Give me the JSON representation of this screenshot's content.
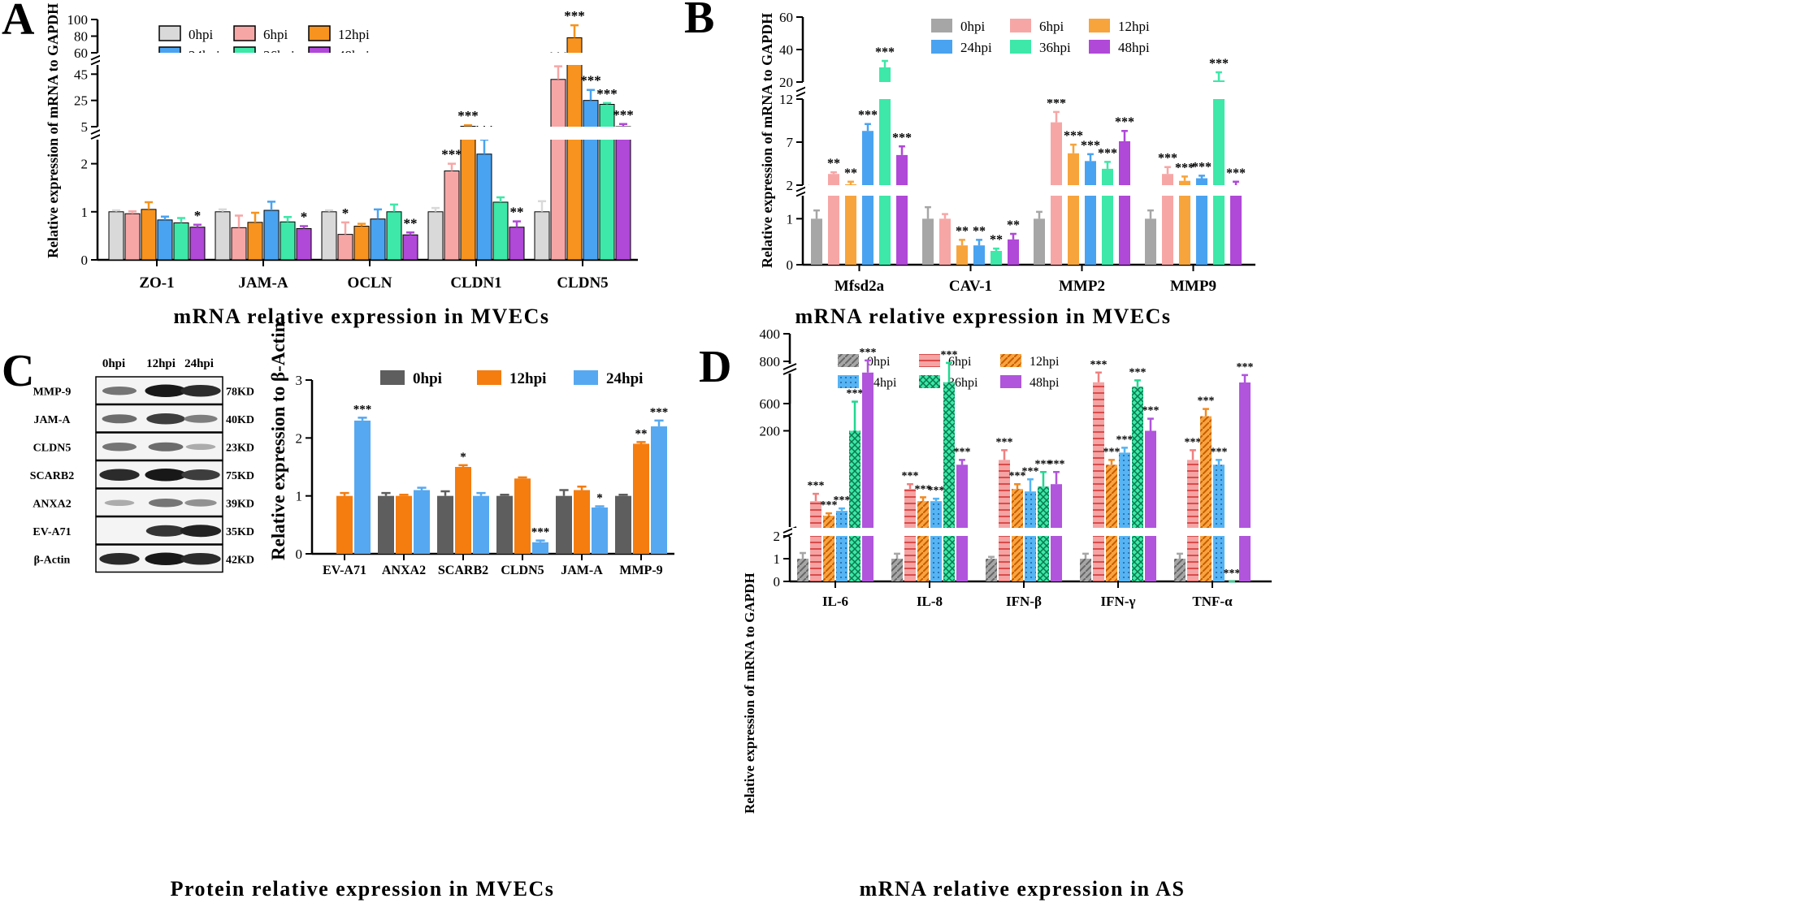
{
  "colors": {
    "h0": "#d9d9d9",
    "h6": "#f7a6a6",
    "h12": "#f7931e",
    "h24": "#4aa3f0",
    "h36": "#3de8a8",
    "h48": "#b048d8",
    "c_gray": "#a6a6a6",
    "c_pink": "#f7a6a6",
    "c_orange": "#f7a43c",
    "c_blue": "#4aa3f0",
    "c_green": "#3de8a8",
    "c_purple": "#b048d8",
    "d_gray": "#a6a6a6",
    "d_pink": "#f08080",
    "d_orange": "#f08a22",
    "d_blue": "#56b4f4",
    "d_green": "#20d890",
    "d_purple": "#b055dc",
    "wb_gray": "#5e5e5e",
    "wb_orange": "#f57c0f",
    "wb_blue": "#56a8f0"
  },
  "chart_data": [
    {
      "panel": "A",
      "type": "bar",
      "ylabel": "Relative expression of mRNA to GAPDH",
      "xtitle": "mRNA relative expression in MVECs",
      "categories": [
        "ZO-1",
        "JAM-A",
        "OCLN",
        "CLDN1",
        "CLDN5"
      ],
      "legend": [
        "0hpi",
        "6hpi",
        "12hpi",
        "24hpi",
        "36hpi",
        "48hpi"
      ],
      "yticks": [
        "0",
        "1",
        "2",
        "5",
        "25",
        "45",
        "60",
        "80",
        "100"
      ],
      "series": [
        {
          "name": "0hpi",
          "values": [
            1.0,
            1.0,
            1.0,
            1.0,
            1.0
          ],
          "err": [
            0.03,
            0.05,
            0.03,
            0.08,
            0.22
          ]
        },
        {
          "name": "6hpi",
          "values": [
            0.96,
            0.67,
            0.53,
            1.85,
            41
          ],
          "err": [
            0.05,
            0.25,
            0.25,
            0.15,
            10
          ]
        },
        {
          "name": "12hpi",
          "values": [
            1.05,
            0.78,
            0.7,
            5.3,
            78
          ],
          "err": [
            0.15,
            0.2,
            0.05,
            0.8,
            15
          ]
        },
        {
          "name": "24hpi",
          "values": [
            0.83,
            1.03,
            0.85,
            2.2,
            25
          ],
          "err": [
            0.07,
            0.18,
            0.2,
            0.3,
            8
          ]
        },
        {
          "name": "36hpi",
          "values": [
            0.77,
            0.79,
            1.0,
            1.2,
            22
          ],
          "err": [
            0.1,
            0.1,
            0.15,
            0.1,
            1
          ]
        },
        {
          "name": "48hpi",
          "values": [
            0.68,
            0.65,
            0.52,
            0.68,
            5.0
          ],
          "err": [
            0.05,
            0.05,
            0.05,
            0.12,
            2
          ]
        }
      ],
      "sig": [
        [
          "",
          "",
          "",
          "",
          ""
        ],
        [
          "",
          "",
          "*",
          "***",
          "***"
        ],
        [
          "",
          "",
          "",
          "***",
          "***"
        ],
        [
          "",
          "",
          "",
          "***",
          "***"
        ],
        [
          "",
          "",
          "",
          "",
          "***"
        ],
        [
          "*",
          "*",
          "**",
          "**",
          "***"
        ]
      ]
    },
    {
      "panel": "B",
      "type": "bar",
      "ylabel": "Relative expression of mRNA to GAPDH",
      "xtitle": "mRNA relative expression in MVECs",
      "categories": [
        "Mfsd2a",
        "CAV-1",
        "MMP2",
        "MMP9"
      ],
      "legend": [
        "0hpi",
        "6hpi",
        "12hpi",
        "24hpi",
        "36hpi",
        "48hpi"
      ],
      "yticks": [
        "0",
        "1",
        "2",
        "7",
        "12",
        "20",
        "40",
        "60"
      ],
      "series": [
        {
          "name": "0hpi",
          "values": [
            1.0,
            1.0,
            1.0,
            1.0
          ],
          "err": [
            0.18,
            0.25,
            0.15,
            0.18
          ]
        },
        {
          "name": "6hpi",
          "values": [
            3.3,
            1.0,
            9.3,
            3.3
          ],
          "err": [
            0.2,
            0.1,
            1.2,
            0.8
          ]
        },
        {
          "name": "12hpi",
          "values": [
            2.1,
            0.42,
            5.7,
            2.5
          ],
          "err": [
            0.3,
            0.12,
            1.0,
            0.5
          ]
        },
        {
          "name": "24hpi",
          "values": [
            8.3,
            0.42,
            4.8,
            2.8
          ],
          "err": [
            0.8,
            0.12,
            0.8,
            0.3
          ]
        },
        {
          "name": "36hpi",
          "values": [
            29,
            0.3,
            3.9,
            21
          ],
          "err": [
            4,
            0.05,
            0.8,
            5
          ]
        },
        {
          "name": "48hpi",
          "values": [
            5.5,
            0.55,
            7.1,
            2.0
          ],
          "err": [
            1.0,
            0.12,
            1.2,
            0.4
          ]
        }
      ],
      "sig": [
        [
          "",
          "",
          "",
          ""
        ],
        [
          "**",
          "",
          "***",
          "***"
        ],
        [
          "**",
          "**",
          "***",
          "***"
        ],
        [
          "***",
          "**",
          "***",
          "***"
        ],
        [
          "***",
          "**",
          "***",
          "***"
        ],
        [
          "***",
          "**",
          "***",
          "***"
        ]
      ]
    },
    {
      "panel": "C",
      "type": "bar",
      "ylabel": "Relative expression to β-Actin",
      "xtitle": "Protein relative expression in MVECs",
      "categories": [
        "EV-A71",
        "ANXA2",
        "SCARB2",
        "CLDN5",
        "JAM-A",
        "MMP-9"
      ],
      "legend": [
        "0hpi",
        "12hpi",
        "24hpi"
      ],
      "yticks": [
        "0",
        "1",
        "2",
        "3"
      ],
      "ylim": [
        0,
        3
      ],
      "series": [
        {
          "name": "0hpi",
          "values": [
            0,
            1.0,
            1.0,
            1.0,
            1.0,
            1.0
          ],
          "err": [
            0,
            0.05,
            0.08,
            0.02,
            0.1,
            0.02
          ]
        },
        {
          "name": "12hpi",
          "values": [
            1.0,
            1.0,
            1.5,
            1.3,
            1.1,
            1.9
          ],
          "err": [
            0.05,
            0.02,
            0.03,
            0.02,
            0.06,
            0.03
          ]
        },
        {
          "name": "24hpi",
          "values": [
            2.3,
            1.1,
            1.0,
            0.2,
            0.8,
            2.2
          ],
          "err": [
            0.05,
            0.04,
            0.05,
            0.03,
            0.02,
            0.1
          ]
        }
      ],
      "sig": [
        [
          "",
          "",
          "",
          "",
          "",
          ""
        ],
        [
          "",
          "",
          "*",
          "",
          "",
          "**"
        ],
        [
          "***",
          "",
          "",
          "***",
          "*",
          "***"
        ]
      ]
    },
    {
      "panel": "D",
      "type": "bar",
      "ylabel": "Relative expression of mRNA to GAPDH",
      "xtitle": "mRNA relative expression in AS",
      "categories": [
        "IL-6",
        "IL-8",
        "IFN-β",
        "IFN-γ",
        "TNF-α"
      ],
      "legend": [
        "0hpi",
        "6hpi",
        "12hpi",
        "24hpi",
        "36hpi",
        "48hpi"
      ],
      "yticks": [
        "0",
        "1",
        "2",
        "200",
        "400",
        "600",
        "800"
      ],
      "series": [
        {
          "name": "0hpi",
          "values": [
            1.0,
            1.0,
            1.0,
            1.0,
            1.0
          ],
          "err": [
            0.25,
            0.22,
            0.08,
            0.22,
            0.22
          ]
        },
        {
          "name": "6hpi",
          "values": [
            55,
            80,
            140,
            300,
            140
          ],
          "err": [
            15,
            10,
            20,
            20,
            20
          ]
        },
        {
          "name": "12hpi",
          "values": [
            25,
            55,
            80,
            130,
            230
          ],
          "err": [
            5,
            8,
            10,
            10,
            15
          ]
        },
        {
          "name": "24hpi",
          "values": [
            35,
            55,
            75,
            155,
            130
          ],
          "err": [
            5,
            5,
            25,
            10,
            10
          ]
        },
        {
          "name": "36hpi",
          "values": [
            200,
            300,
            85,
            680,
            410
          ],
          "err": [
            60,
            40,
            30,
            30,
            40
          ]
        },
        {
          "name": "48hpi",
          "values": [
            320,
            130,
            90,
            200,
            700
          ],
          "err": [
            25,
            10,
            25,
            25,
            35
          ]
        }
      ],
      "sig": [
        [
          "",
          "",
          "",
          "",
          ""
        ],
        [
          "***",
          "***",
          "***",
          "***",
          "***"
        ],
        [
          "***",
          "***",
          "***",
          "***",
          "***"
        ],
        [
          "***",
          "***",
          "***",
          "***",
          "***"
        ],
        [
          "***",
          "***",
          "***",
          "***",
          "***"
        ],
        [
          "***",
          "***",
          "***",
          "***",
          "***"
        ]
      ]
    }
  ],
  "panels": {
    "a": {
      "letter": "A"
    },
    "b": {
      "letter": "B"
    },
    "c": {
      "letter": "C"
    },
    "d": {
      "letter": "D"
    }
  },
  "western_blot": {
    "time_labels": [
      "0hpi",
      "12hpi",
      "24hpi"
    ],
    "proteins": [
      "MMP-9",
      "JAM-A",
      "CLDN5",
      "SCARB2",
      "ANXA2",
      "EV-A71",
      "β-Actin"
    ],
    "weights": [
      "78KD",
      "40KD",
      "23KD",
      "75KD",
      "39KD",
      "35KD",
      "42KD"
    ],
    "intensity": [
      [
        0.45,
        0.95,
        0.85
      ],
      [
        0.5,
        0.75,
        0.4
      ],
      [
        0.45,
        0.5,
        0.15
      ],
      [
        0.85,
        0.95,
        0.75
      ],
      [
        0.15,
        0.45,
        0.3
      ],
      [
        0.0,
        0.8,
        0.9
      ],
      [
        0.85,
        0.95,
        0.85
      ]
    ]
  }
}
